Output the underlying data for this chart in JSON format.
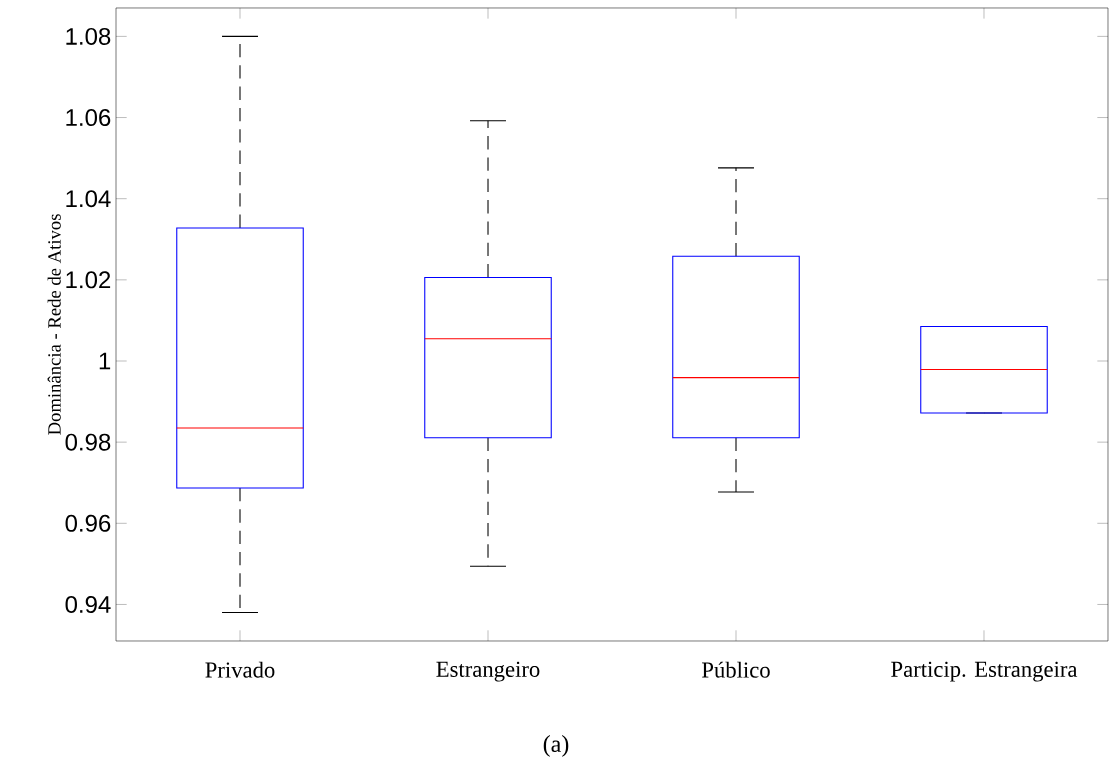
{
  "chart_data": {
    "type": "box",
    "ylabel": "Dominância - Rede de Ativos",
    "categories": [
      "Privado",
      "Estrangeiro",
      "Público",
      "Particip. Estrangeira"
    ],
    "series": [
      {
        "color": "#0000ff",
        "boxes": [
          {
            "low": 0.938,
            "q1": 0.9687,
            "median": 0.9835,
            "q3": 1.0328,
            "high": 1.08
          },
          {
            "low": 0.9494,
            "q1": 0.9811,
            "median": 1.0055,
            "q3": 1.0206,
            "high": 1.0592
          },
          {
            "low": 0.9677,
            "q1": 0.9811,
            "median": 0.9959,
            "q3": 1.0258,
            "high": 1.0476
          },
          {
            "low": 0.9872,
            "q1": 0.9872,
            "median": 0.9979,
            "q3": 1.0085,
            "high": 1.0085
          }
        ]
      }
    ],
    "ylim": [
      0.931,
      1.087
    ],
    "yticks": [
      0.94,
      0.96,
      0.98,
      1,
      1.02,
      1.04,
      1.06,
      1.08
    ],
    "line_style": "dashed",
    "grid": false,
    "annotations": [
      "(a)"
    ]
  }
}
